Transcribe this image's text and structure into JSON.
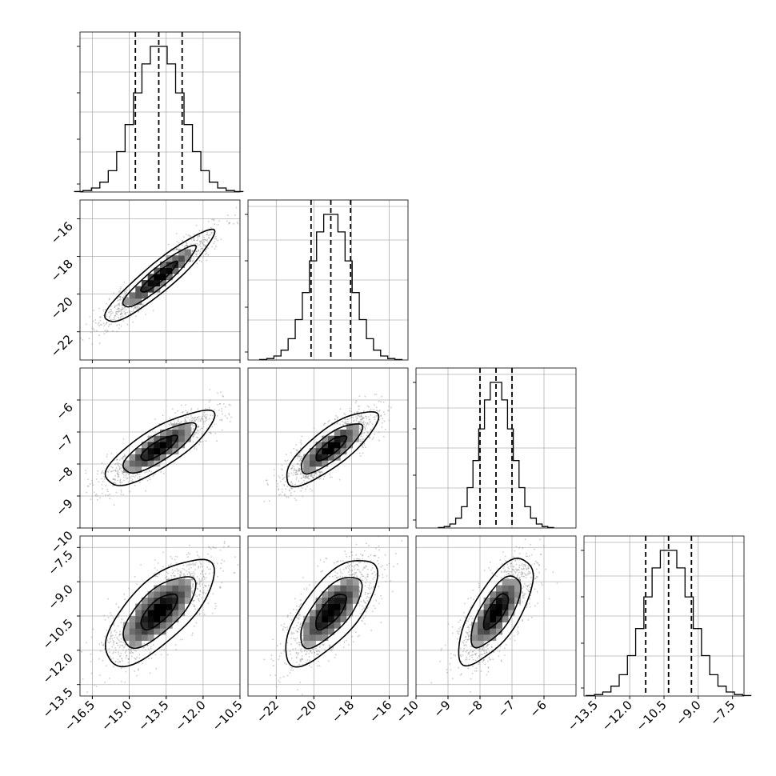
{
  "chart_data": {
    "type": "corner",
    "dimensions": 4,
    "params": [
      {
        "mean": -13.8,
        "std": 0.95,
        "range": [
          -17.0,
          -10.5
        ],
        "ticks": [
          -16.5,
          -15.0,
          -13.5,
          -12.0,
          -10.5
        ],
        "tick_labels": [
          "−16.5",
          "−15.0",
          "−13.5",
          "−12.0",
          "−10.5"
        ],
        "quantiles": [
          -14.75,
          -13.8,
          -12.85
        ]
      },
      {
        "mean": -19.1,
        "std": 1.05,
        "range": [
          -23.5,
          -15.0
        ],
        "ticks": [
          -22,
          -20,
          -18,
          -16
        ],
        "tick_labels": [
          "−22",
          "−20",
          "−18",
          "−16"
        ],
        "quantiles": [
          -20.15,
          -19.1,
          -18.05
        ]
      },
      {
        "mean": -7.5,
        "std": 0.5,
        "range": [
          -10.0,
          -5.0
        ],
        "ticks": [
          -10,
          -9,
          -8,
          -7,
          -6
        ],
        "tick_labels": [
          "−10",
          "−9",
          "−8",
          "−7",
          "−6"
        ],
        "quantiles": [
          -8.0,
          -7.5,
          -7.0
        ]
      },
      {
        "mean": -10.3,
        "std": 1.0,
        "range": [
          -14.0,
          -7.0
        ],
        "ticks": [
          -13.5,
          -12.0,
          -10.5,
          -9.0,
          -7.5
        ],
        "tick_labels": [
          "−13.5",
          "−12.0",
          "−10.5",
          "−9.0",
          "−7.5"
        ],
        "quantiles": [
          -11.3,
          -10.3,
          -9.3
        ]
      }
    ],
    "correlations": [
      [
        0,
        1,
        0.92
      ],
      [
        0,
        2,
        0.8
      ],
      [
        1,
        2,
        0.8
      ],
      [
        0,
        3,
        0.7
      ],
      [
        1,
        3,
        0.7
      ],
      [
        2,
        3,
        0.7
      ]
    ],
    "histogram_bins": 20,
    "quantile_levels": [
      0.16,
      0.5,
      0.84
    ],
    "contour_levels_sigma": [
      0.5,
      1.0,
      1.5
    ],
    "grid": true,
    "colors": {
      "lines": "#000000",
      "points": "#8a8a8a",
      "grid": "#b0b0b0"
    }
  }
}
